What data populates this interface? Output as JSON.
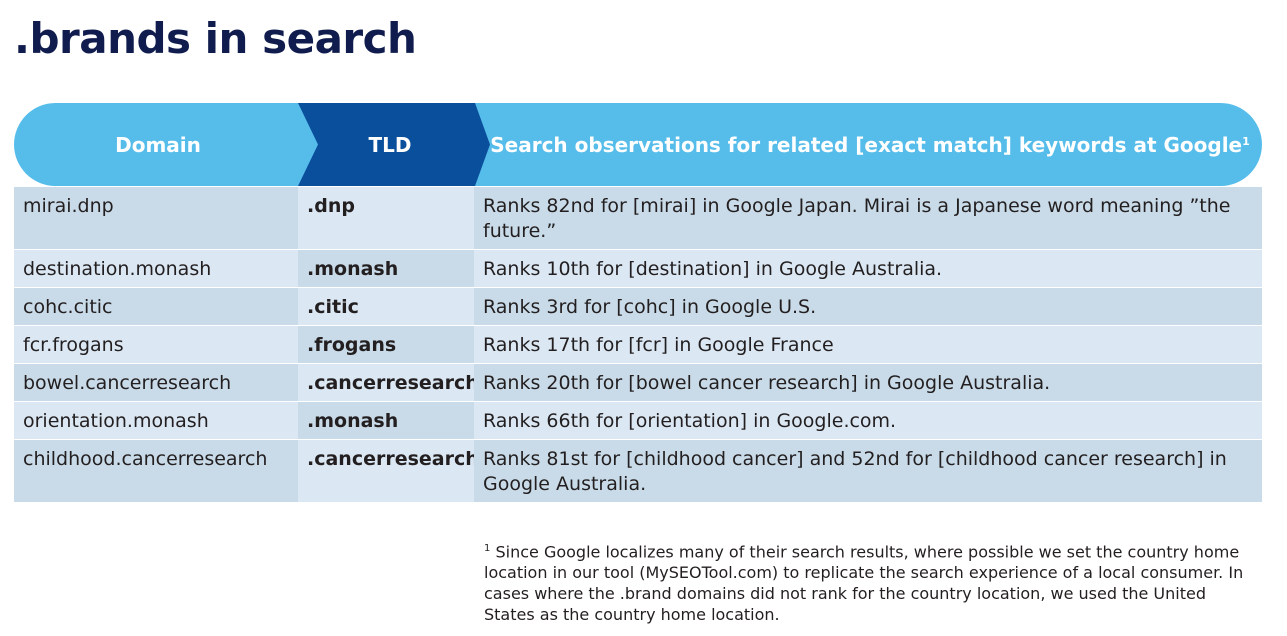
{
  "title": ".brands in search",
  "table": {
    "headers": {
      "domain": "Domain",
      "tld": "TLD",
      "observations": "Search observations for related [exact match] keywords at Google",
      "observations_marker": "1"
    },
    "rows": [
      {
        "domain": "mirai.dnp",
        "tld": ".dnp",
        "observation": "Ranks 82nd for [mirai] in Google Japan. Mirai is a Japanese word meaning ”the future.”"
      },
      {
        "domain": "destination.monash",
        "tld": ".monash",
        "observation": "Ranks 10th for [destination] in Google Australia."
      },
      {
        "domain": "cohc.citic",
        "tld": ".citic",
        "observation": "Ranks 3rd for [cohc] in Google U.S."
      },
      {
        "domain": "fcr.frogans",
        "tld": ".frogans",
        "observation": "Ranks 17th for [fcr] in Google France"
      },
      {
        "domain": "bowel.cancerresearch",
        "tld": ".cancerresearch",
        "observation": "Ranks 20th for [bowel cancer research] in Google Australia."
      },
      {
        "domain": "orientation.monash",
        "tld": ".monash",
        "observation": "Ranks 66th for [orientation] in Google.com."
      },
      {
        "domain": "childhood.cancerresearch",
        "tld": ".cancerresearch",
        "observation": "Ranks 81st for [childhood cancer] and 52nd for [childhood cancer research] in Google Australia."
      }
    ]
  },
  "footnote": {
    "marker": "1",
    "text": "Since Google localizes many of their search results, where possible we set the country home location in our tool (MySEOTool.com) to replicate the search experience of a local consumer. In cases where the .brand domains did not rank for the country location, we used the United States as the country home location."
  },
  "colors": {
    "title": "#0f1c4d",
    "header_light": "#56bdeb",
    "header_dark": "#0a4f9c",
    "row_dark": "#c9dbe8",
    "row_light": "#dbe8f4"
  }
}
